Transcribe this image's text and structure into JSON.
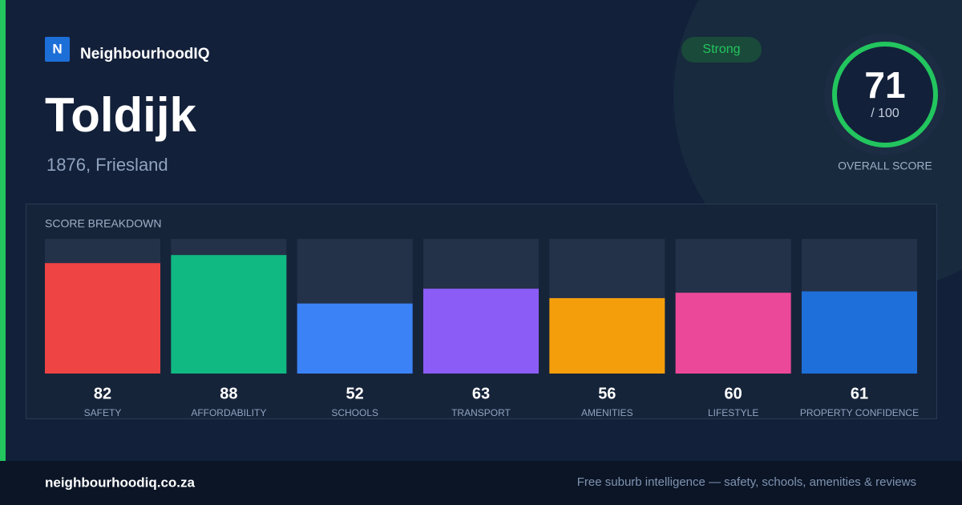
{
  "brand": {
    "logo": "N",
    "name": "NeighbourhoodIQ"
  },
  "badge": "Strong",
  "place": {
    "name": "Toldijk",
    "subtitle": "1876, Friesland"
  },
  "overall": {
    "score": 71,
    "max_label": "/ 100",
    "label": "OVERALL SCORE"
  },
  "chart_data": {
    "type": "bar",
    "title": "SCORE BREAKDOWN",
    "categories": [
      "SAFETY",
      "AFFORDABILITY",
      "SCHOOLS",
      "TRANSPORT",
      "AMENITIES",
      "LIFESTYLE",
      "PROPERTY CONFIDENCE"
    ],
    "values": [
      82,
      88,
      52,
      63,
      56,
      60,
      61
    ],
    "colors": [
      "#ef4444",
      "#10b981",
      "#3b82f6",
      "#8b5cf6",
      "#f59e0b",
      "#ec4899",
      "#1e6fd9"
    ],
    "ylim": [
      0,
      100
    ]
  },
  "footer": {
    "site": "neighbourhoodiq.co.za",
    "tagline": "Free suburb intelligence — safety, schools, amenities & reviews"
  }
}
